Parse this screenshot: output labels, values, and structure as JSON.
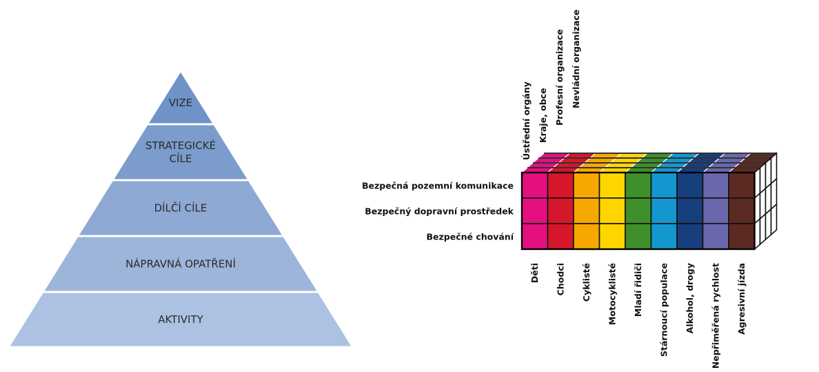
{
  "pyramid": {
    "levels": [
      {
        "lines": [
          "VIZE"
        ],
        "color": "#6f93c7"
      },
      {
        "lines": [
          "STRATEGICKÉ",
          "CÍLE"
        ],
        "color": "#7b9ccc"
      },
      {
        "lines": [
          "DÍLČÍ CÍLE"
        ],
        "color": "#8ea9d4"
      },
      {
        "lines": [
          "NÁPRAVNÁ OPATŘENÍ"
        ],
        "color": "#9db5da"
      },
      {
        "lines": [
          "AKTIVITY"
        ],
        "color": "#adc2e2"
      }
    ]
  },
  "cube": {
    "row_labels": [
      "Bezpečná pozemní komunikace",
      "Bezpečný dopravní prostředek",
      "Bezpečné chování"
    ],
    "column_labels": [
      "Děti",
      "Chodci",
      "Cyklisté",
      "Motocyklisté",
      "Mladí řidiči",
      "Stárnoucí populace",
      "Alkohol, drogy",
      "Nepřiměřená rychlost",
      "Agresivní jízda"
    ],
    "column_colors": [
      "#e4107f",
      "#d6162b",
      "#f6a800",
      "#ffd500",
      "#3f8f2b",
      "#1496cf",
      "#173f7d",
      "#6a67ad",
      "#5b2a22"
    ],
    "depth_labels": [
      "Ústřední orgány",
      "Kraje, obce",
      "Profesní organizace",
      "Nevládní organizace"
    ]
  }
}
